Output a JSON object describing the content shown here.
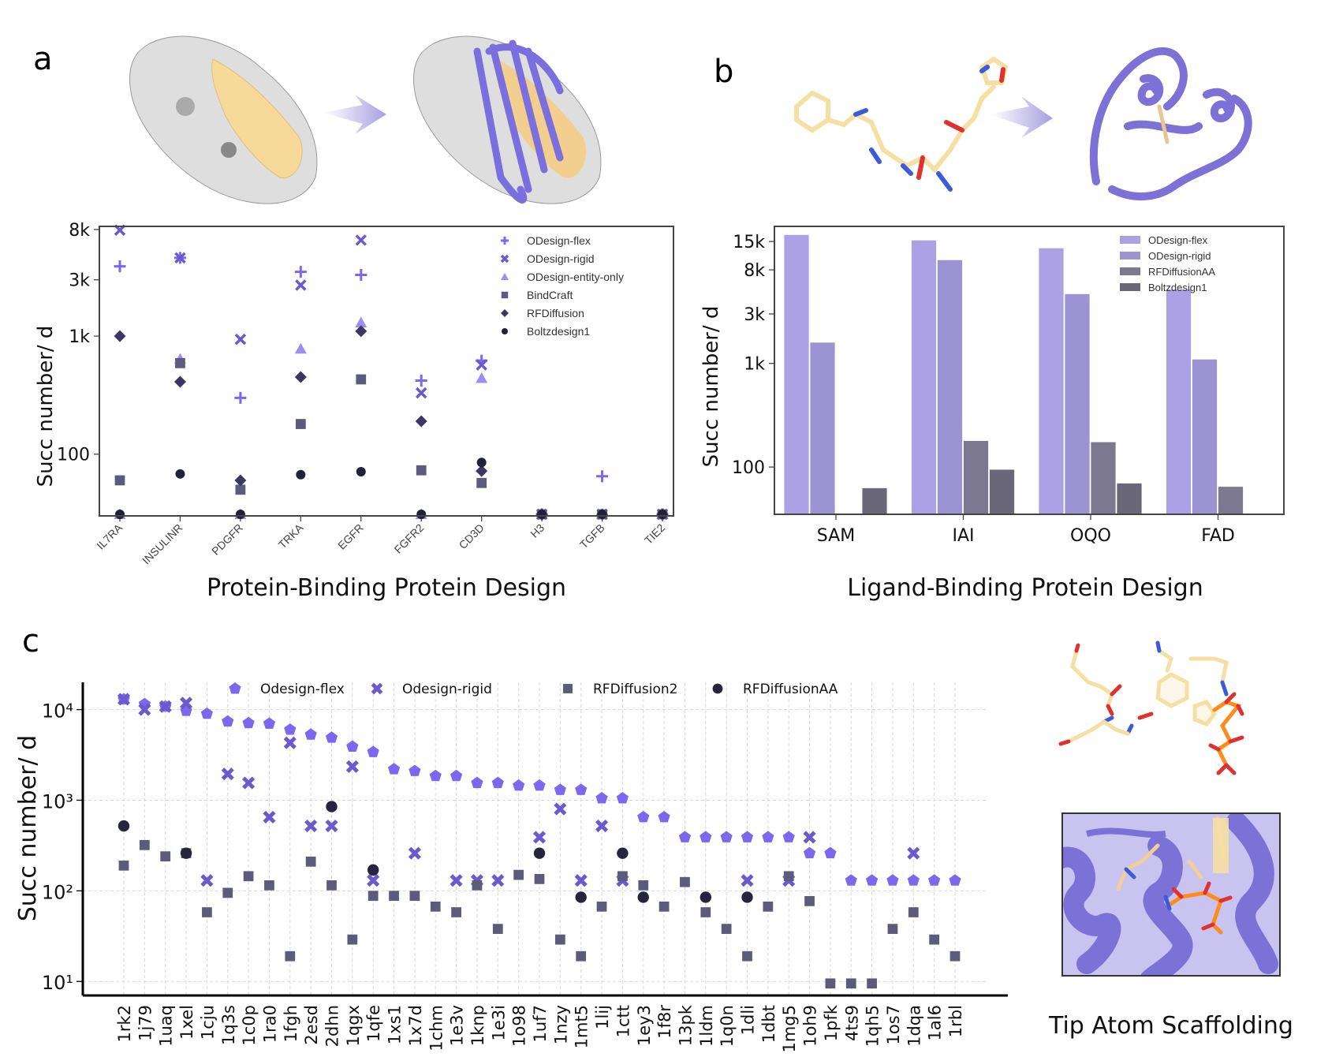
{
  "panels": {
    "a": {
      "label": "a",
      "caption": "Protein-Binding Protein Design",
      "illustration": [
        "target-surface-with-hotspot",
        "arrow",
        "designed-binder-on-surface"
      ]
    },
    "b": {
      "label": "b",
      "caption": "Ligand-Binding Protein Design",
      "illustration": [
        "ligand-structure",
        "arrow",
        "designed-protein-with-ligand"
      ]
    },
    "c": {
      "label": "c",
      "side_caption": "Tip Atom Scaffolding",
      "illustration": [
        "tip-atom-motif",
        "scaffolded-protein-inset"
      ]
    }
  },
  "colors": {
    "odesign_flex": "#7b68ee",
    "odesign_rigid": "#6a5acd",
    "odesign_entity_only": "#9d8df1",
    "bindcraft": "#5c5a7e",
    "rfdiffusion": "#3b3663",
    "boltzdesign1": "#22213b",
    "bar_flex": "#aba1e4",
    "bar_rigid": "#9c93d2",
    "bar_rfaa": "#7c7890",
    "bar_boltz": "#6a6878",
    "rfdiffusion2": "#5d5b7c",
    "rfdiffusionaa": "#26243f"
  },
  "chart_data": [
    {
      "id": "a",
      "type": "scatter",
      "title": "",
      "xlabel": "",
      "ylabel": "Succ number/ d",
      "yscale": "log",
      "ylim": [
        30,
        8500
      ],
      "yticks": [
        100,
        1000,
        3000,
        8000
      ],
      "ytick_labels": [
        "100",
        "1k",
        "3k",
        "8k"
      ],
      "categories": [
        "IL7RA",
        "INSULINR",
        "PDGFR",
        "TRKA",
        "EGFR",
        "FGFR2",
        "CD3D",
        "H3",
        "TGFB",
        "TIE2"
      ],
      "legend_position": "top-right",
      "grid": false,
      "series": [
        {
          "name": "ODesign-flex",
          "marker": "plus",
          "values": [
            3900,
            4600,
            300,
            3500,
            3300,
            420,
            620,
            30,
            65,
            30
          ]
        },
        {
          "name": "ODesign-rigid",
          "marker": "x",
          "values": [
            7900,
            4600,
            940,
            2700,
            6500,
            330,
            570,
            30,
            30,
            30
          ]
        },
        {
          "name": "ODesign-entity-only",
          "marker": "triangle",
          "values": [
            30,
            640,
            30,
            780,
            1300,
            30,
            440,
            30,
            30,
            30
          ]
        },
        {
          "name": "BindCraft",
          "marker": "square",
          "values": [
            60,
            590,
            50,
            180,
            430,
            73,
            57,
            30,
            30,
            30
          ]
        },
        {
          "name": "RFDiffusion",
          "marker": "diamond",
          "values": [
            1000,
            410,
            60,
            450,
            1100,
            190,
            72,
            30,
            30,
            30
          ]
        },
        {
          "name": "Boltzdesign1",
          "marker": "circle",
          "values": [
            30,
            68,
            30,
            67,
            71,
            30,
            85,
            30,
            30,
            30
          ]
        }
      ]
    },
    {
      "id": "b",
      "type": "bar",
      "title": "",
      "xlabel": "",
      "ylabel": "Succ number/ d",
      "yscale": "log",
      "ylim": [
        35,
        21000
      ],
      "yticks": [
        100,
        1000,
        3000,
        8000,
        15000
      ],
      "ytick_labels": [
        "100",
        "1k",
        "3k",
        "8k",
        "15k"
      ],
      "categories": [
        "SAM",
        "IAI",
        "OQO",
        "FAD"
      ],
      "legend_position": "top-right",
      "grid": false,
      "series": [
        {
          "name": "ODesign-flex",
          "values": [
            17500,
            15500,
            13000,
            5200
          ]
        },
        {
          "name": "ODesign-rigid",
          "values": [
            1600,
            10000,
            4700,
            1100
          ]
        },
        {
          "name": "RFDiffusionAA",
          "values": [
            null,
            180,
            175,
            65
          ]
        },
        {
          "name": "Boltzdesign1",
          "values": [
            63,
            95,
            70,
            null
          ]
        }
      ]
    },
    {
      "id": "c",
      "type": "scatter",
      "title": "",
      "xlabel": "",
      "ylabel": "Succ number/ d",
      "yscale": "log",
      "ylim": [
        7,
        20000
      ],
      "yticks": [
        10,
        100,
        1000,
        10000
      ],
      "ytick_labels": [
        "10¹",
        "10²",
        "10³",
        "10⁴"
      ],
      "legend_position": "top",
      "grid": true,
      "categories": [
        "1rk2",
        "1j79",
        "1uaq",
        "1xel",
        "1cju",
        "1q3s",
        "1c0p",
        "1ra0",
        "1fgh",
        "2esd",
        "2dhn",
        "1qgx",
        "1qfe",
        "1xs1",
        "1x7d",
        "1chm",
        "1e3v",
        "1knp",
        "1e3i",
        "1o98",
        "1uf7",
        "1nzy",
        "1mt5",
        "1lij",
        "1ctt",
        "1ey3",
        "1f8r",
        "13pk",
        "1ldm",
        "1q0n",
        "1dli",
        "1dbt",
        "1mg5",
        "1oh9",
        "1pfk",
        "4ts9",
        "1qh5",
        "1os7",
        "1dqa",
        "1al6",
        "1rbl"
      ],
      "series": [
        {
          "name": "Odesign-flex",
          "marker": "pentagon",
          "values": [
            13000,
            11500,
            10800,
            9700,
            9000,
            7400,
            7100,
            7000,
            6000,
            5300,
            4900,
            3900,
            3400,
            2200,
            2100,
            1850,
            1850,
            1550,
            1550,
            1450,
            1450,
            1300,
            1300,
            1050,
            1050,
            650,
            650,
            390,
            390,
            390,
            390,
            390,
            390,
            260,
            260,
            130,
            130,
            130,
            130,
            130,
            130
          ]
        },
        {
          "name": "Odesign-rigid",
          "marker": "x-bold",
          "values": [
            13000,
            10000,
            10800,
            11800,
            130,
            1950,
            1550,
            650,
            4300,
            520,
            520,
            2350,
            130,
            null,
            260,
            null,
            130,
            130,
            130,
            null,
            390,
            800,
            130,
            520,
            130,
            null,
            null,
            null,
            null,
            null,
            130,
            null,
            130,
            390,
            null,
            null,
            null,
            null,
            260,
            null,
            null
          ]
        },
        {
          "name": "RFDiffusion2",
          "marker": "square",
          "values": [
            190,
            320,
            240,
            260,
            58,
            95,
            145,
            115,
            19,
            210,
            115,
            29,
            88,
            88,
            88,
            67,
            58,
            115,
            38,
            150,
            135,
            29,
            19,
            67,
            145,
            115,
            67,
            125,
            58,
            38,
            19,
            67,
            145,
            77,
            9.5,
            9.5,
            9.5,
            38,
            58,
            29,
            19
          ]
        },
        {
          "name": "RFDiffusionAA",
          "marker": "circle",
          "values": [
            520,
            null,
            null,
            260,
            null,
            null,
            null,
            null,
            null,
            null,
            850,
            null,
            170,
            null,
            null,
            null,
            null,
            null,
            null,
            null,
            260,
            null,
            85,
            null,
            260,
            85,
            null,
            null,
            85,
            null,
            85,
            null,
            null,
            null,
            null,
            null,
            null,
            null,
            null,
            null,
            null
          ]
        }
      ]
    }
  ]
}
